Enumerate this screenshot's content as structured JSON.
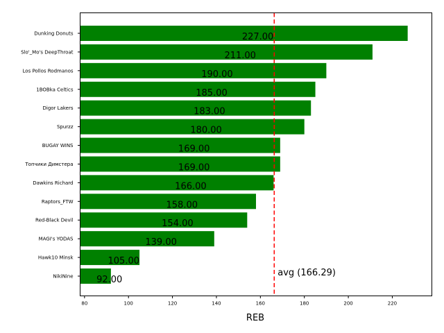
{
  "chart_data": {
    "type": "bar",
    "orientation": "horizontal",
    "categories": [
      "Dunking Donuts",
      "Slo'_Mo's DeepThroat",
      "Los Pollos Rodmanos",
      "1BOBka Celtics",
      "Digor Lakers",
      "Spurzz",
      "BUGAY WINS",
      "Топчики Димстера",
      "Dawkins Richard",
      "Raptors_FTW",
      "Red-Black Devil",
      "MAGI's YODAS",
      "Hawk10 Minsk",
      "NikiNine"
    ],
    "values": [
      227,
      211,
      190,
      185,
      183,
      180,
      169,
      169,
      166,
      158,
      154,
      139,
      105,
      92
    ],
    "value_labels": [
      "227.00",
      "211.00",
      "190.00",
      "185.00",
      "183.00",
      "180.00",
      "169.00",
      "169.00",
      "166.00",
      "158.00",
      "154.00",
      "139.00",
      "105.00",
      "92.00"
    ],
    "xlabel": "REB",
    "xlim": [
      78,
      238
    ],
    "xticks": [
      80,
      100,
      120,
      140,
      160,
      180,
      200,
      220
    ],
    "average": 166.29,
    "average_label": "avg (166.29)",
    "bar_color": "#008000",
    "avg_line_color": "#ff0000",
    "grid": false
  }
}
